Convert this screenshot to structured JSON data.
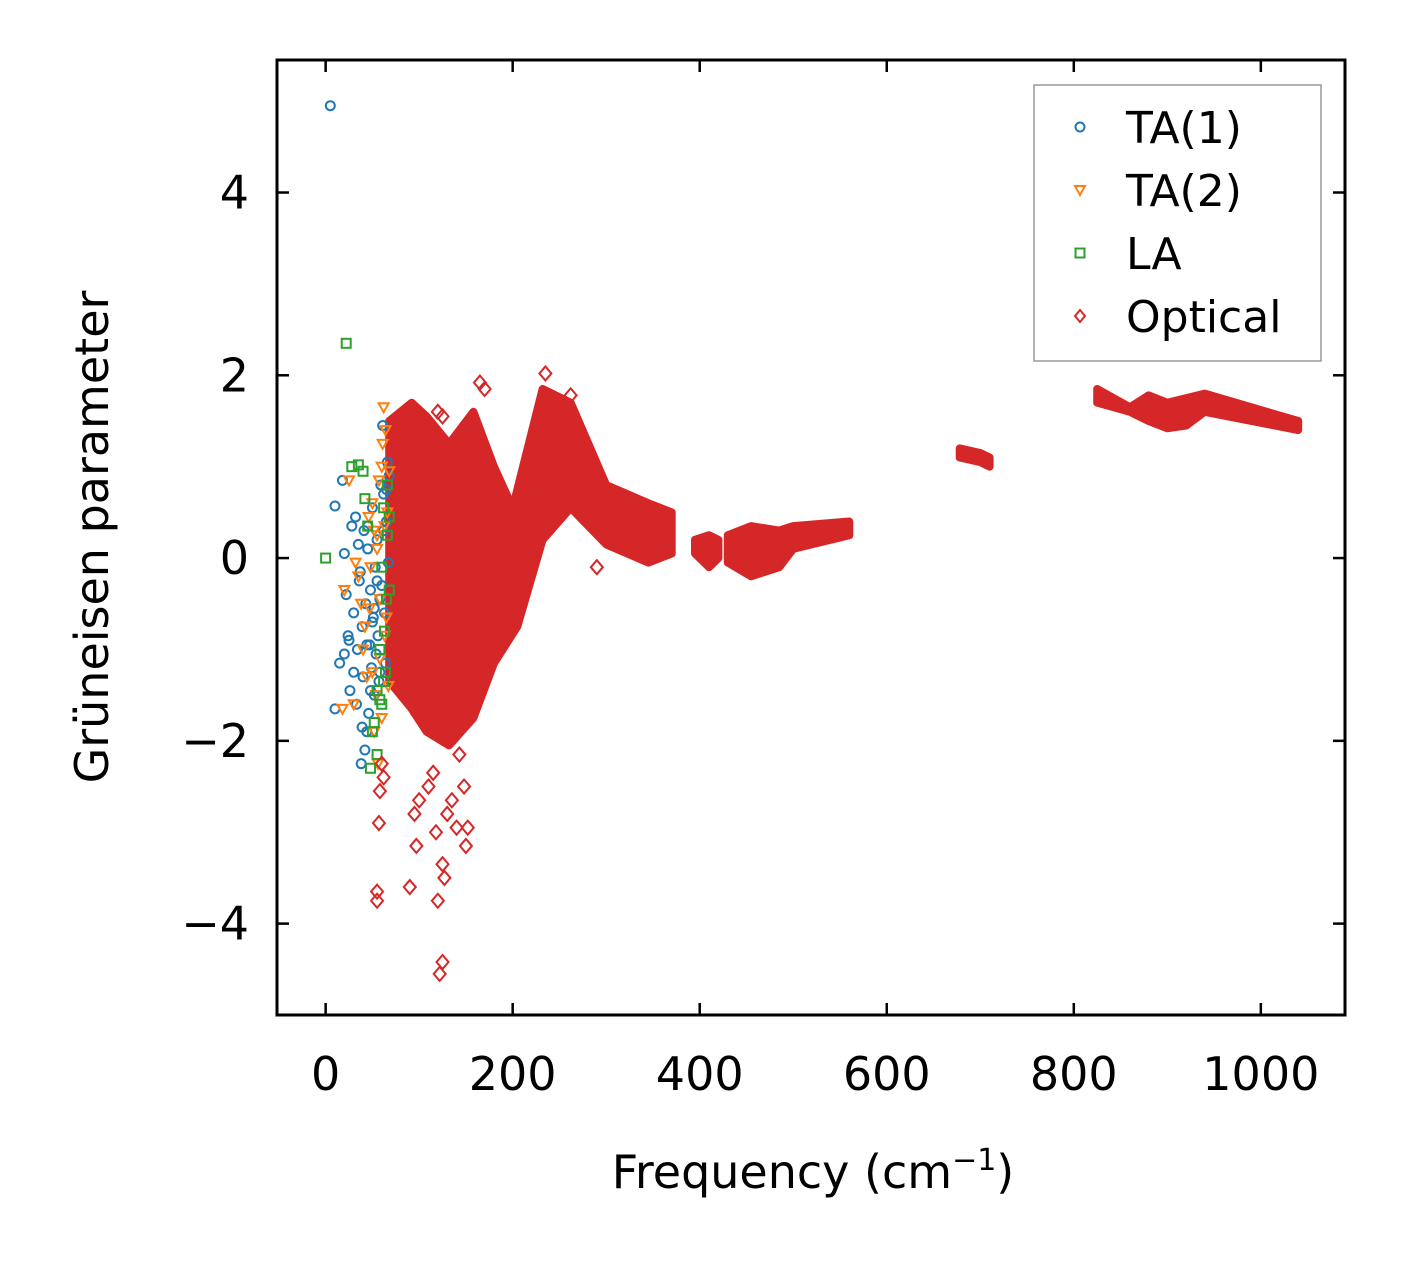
{
  "chart_data": {
    "type": "scatter",
    "title": "",
    "xlabel": "Frequency (cm",
    "xlabel_sup": "−1",
    "xlabel_end": ")",
    "ylabel": "Grüneisen parameter",
    "xlim": [
      -52,
      1090
    ],
    "ylim": [
      -5.0,
      5.45
    ],
    "xticks": [
      0,
      200,
      400,
      600,
      800,
      1000
    ],
    "yticks": [
      -4,
      -2,
      0,
      2,
      4
    ],
    "xtick_labels": [
      "0",
      "200",
      "400",
      "600",
      "800",
      "1000"
    ],
    "ytick_labels": [
      "−4",
      "−2",
      "0",
      "2",
      "4"
    ],
    "grid": false,
    "legend_position": "top-right",
    "series": [
      {
        "name": "TA(1)",
        "marker": "circle",
        "color": "#1f77b4",
        "points": [
          [
            5,
            4.95
          ],
          [
            10,
            0.57
          ],
          [
            18,
            0.85
          ],
          [
            20,
            0.05
          ],
          [
            22,
            -0.4
          ],
          [
            24,
            -0.85
          ],
          [
            26,
            -1.45
          ],
          [
            28,
            0.35
          ],
          [
            30,
            -0.6
          ],
          [
            32,
            0.45
          ],
          [
            34,
            -1.0
          ],
          [
            35,
            0.15
          ],
          [
            36,
            -0.25
          ],
          [
            38,
            -2.25
          ],
          [
            39,
            -0.75
          ],
          [
            40,
            -1.3
          ],
          [
            41,
            0.3
          ],
          [
            42,
            -2.1
          ],
          [
            43,
            -0.5
          ],
          [
            44,
            -1.9
          ],
          [
            45,
            0.1
          ],
          [
            46,
            -1.7
          ],
          [
            47,
            -0.95
          ],
          [
            48,
            -0.35
          ],
          [
            49,
            -1.2
          ],
          [
            50,
            0.55
          ],
          [
            51,
            -0.65
          ],
          [
            52,
            -1.5
          ],
          [
            53,
            -0.1
          ],
          [
            54,
            -1.05
          ],
          [
            55,
            0.2
          ],
          [
            56,
            -0.85
          ],
          [
            57,
            -1.35
          ],
          [
            58,
            -0.45
          ],
          [
            59,
            0.8
          ],
          [
            60,
            -0.3
          ],
          [
            61,
            1.45
          ],
          [
            62,
            0.7
          ],
          [
            63,
            -0.6
          ],
          [
            64,
            -1.15
          ],
          [
            65,
            0.4
          ],
          [
            66,
            1.05
          ],
          [
            67,
            -0.05
          ],
          [
            68,
            0.9
          ],
          [
            10,
            -1.65
          ],
          [
            15,
            -1.15
          ],
          [
            20,
            -1.05
          ],
          [
            25,
            -0.9
          ],
          [
            30,
            -1.25
          ],
          [
            33,
            -1.6
          ],
          [
            37,
            -0.15
          ],
          [
            39,
            -1.85
          ],
          [
            44,
            -0.95
          ],
          [
            48,
            -1.45
          ],
          [
            52,
            -0.55
          ],
          [
            55,
            -0.25
          ],
          [
            58,
            -1.25
          ],
          [
            62,
            0.3
          ],
          [
            65,
            0.75
          ],
          [
            45,
            0.35
          ],
          [
            50,
            -0.7
          ]
        ]
      },
      {
        "name": "TA(2)",
        "marker": "triangle-down",
        "color": "#ff7f0e",
        "points": [
          [
            18,
            -1.65
          ],
          [
            20,
            -0.35
          ],
          [
            25,
            0.85
          ],
          [
            30,
            -1.6
          ],
          [
            32,
            -0.05
          ],
          [
            35,
            -0.2
          ],
          [
            38,
            -0.5
          ],
          [
            40,
            -1.0
          ],
          [
            42,
            -0.75
          ],
          [
            44,
            -1.3
          ],
          [
            46,
            0.45
          ],
          [
            48,
            -0.1
          ],
          [
            50,
            0.6
          ],
          [
            52,
            -1.9
          ],
          [
            54,
            -1.5
          ],
          [
            55,
            0.25
          ],
          [
            56,
            -2.25
          ],
          [
            57,
            0.85
          ],
          [
            58,
            -1.1
          ],
          [
            60,
            1.0
          ],
          [
            61,
            1.25
          ],
          [
            62,
            1.65
          ],
          [
            63,
            0.35
          ],
          [
            64,
            1.4
          ],
          [
            65,
            -0.65
          ],
          [
            66,
            0.5
          ],
          [
            67,
            -1.4
          ],
          [
            68,
            0.95
          ],
          [
            58,
            -0.45
          ],
          [
            50,
            -1.25
          ],
          [
            47,
            -0.55
          ],
          [
            60,
            -1.75
          ],
          [
            63,
            -0.85
          ],
          [
            55,
            0.1
          ],
          [
            52,
            0.3
          ]
        ]
      },
      {
        "name": "LA",
        "marker": "square",
        "color": "#2ca02c",
        "points": [
          [
            0,
            0.0
          ],
          [
            22,
            2.35
          ],
          [
            28,
            1.0
          ],
          [
            35,
            1.02
          ],
          [
            40,
            0.95
          ],
          [
            42,
            0.65
          ],
          [
            45,
            0.35
          ],
          [
            48,
            -2.3
          ],
          [
            50,
            -1.9
          ],
          [
            52,
            -1.8
          ],
          [
            55,
            -2.15
          ],
          [
            58,
            -1.55
          ],
          [
            60,
            -1.6
          ],
          [
            62,
            -1.35
          ],
          [
            64,
            -1.25
          ],
          [
            66,
            0.8
          ],
          [
            68,
            0.45
          ],
          [
            65,
            -0.45
          ],
          [
            63,
            -0.8
          ],
          [
            60,
            -0.1
          ],
          [
            66,
            0.25
          ],
          [
            55,
            -1.45
          ],
          [
            58,
            -1.0
          ],
          [
            68,
            -0.35
          ],
          [
            62,
            0.55
          ]
        ]
      },
      {
        "name": "Optical",
        "marker": "diamond",
        "color": "#d62728",
        "points": [
          [
            55,
            -3.65
          ],
          [
            55,
            -3.75
          ],
          [
            57,
            -2.9
          ],
          [
            58,
            -2.55
          ],
          [
            60,
            -2.25
          ],
          [
            62,
            -2.4
          ],
          [
            90,
            -3.6
          ],
          [
            95,
            -2.8
          ],
          [
            97,
            -3.15
          ],
          [
            100,
            -2.65
          ],
          [
            110,
            -2.5
          ],
          [
            115,
            -2.35
          ],
          [
            118,
            -3.0
          ],
          [
            120,
            -3.75
          ],
          [
            122,
            -4.55
          ],
          [
            125,
            -4.42
          ],
          [
            125,
            -3.35
          ],
          [
            127,
            -3.5
          ],
          [
            130,
            -2.8
          ],
          [
            135,
            -2.65
          ],
          [
            140,
            -2.95
          ],
          [
            143,
            -2.15
          ],
          [
            148,
            -2.5
          ],
          [
            150,
            -3.15
          ],
          [
            152,
            -2.95
          ],
          [
            120,
            1.6
          ],
          [
            125,
            1.55
          ],
          [
            165,
            1.92
          ],
          [
            170,
            1.85
          ],
          [
            235,
            2.02
          ],
          [
            262,
            1.78
          ],
          [
            290,
            -0.1
          ]
        ],
        "regions": [
          {
            "xs": [
              68,
              92,
              108,
              132,
              158,
              180,
              200,
              232,
              262,
              300,
              345,
              370,
              370,
              345,
              300,
              262,
              232,
              205,
              180,
              158,
              132,
              108,
              92,
              68
            ],
            "ys": [
              1.5,
              1.7,
              1.55,
              1.25,
              1.6,
              1.0,
              0.55,
              1.85,
              1.7,
              0.8,
              0.6,
              0.5,
              0.05,
              -0.05,
              0.15,
              0.55,
              0.2,
              -0.75,
              -1.15,
              -1.75,
              -2.05,
              -1.9,
              -1.65,
              -1.35
            ]
          },
          {
            "xs": [
              395,
              410,
              420,
              420,
              410,
              395
            ],
            "ys": [
              0.2,
              0.25,
              0.2,
              0.0,
              -0.1,
              0.05
            ]
          },
          {
            "xs": [
              430,
              455,
              485,
              500,
              560,
              560,
              500,
              485,
              455,
              430
            ],
            "ys": [
              0.25,
              0.35,
              0.3,
              0.35,
              0.4,
              0.25,
              0.1,
              -0.1,
              -0.2,
              -0.05
            ]
          },
          {
            "xs": [
              678,
              700,
              710,
              710,
              700,
              678
            ],
            "ys": [
              1.2,
              1.15,
              1.1,
              1.0,
              1.05,
              1.1
            ]
          },
          {
            "xs": [
              825,
              860,
              880,
              900,
              940,
              1040,
              1040,
              940,
              920,
              900,
              880,
              860,
              825
            ],
            "ys": [
              1.85,
              1.65,
              1.78,
              1.7,
              1.8,
              1.5,
              1.4,
              1.6,
              1.45,
              1.42,
              1.5,
              1.6,
              1.7
            ]
          }
        ]
      }
    ]
  }
}
